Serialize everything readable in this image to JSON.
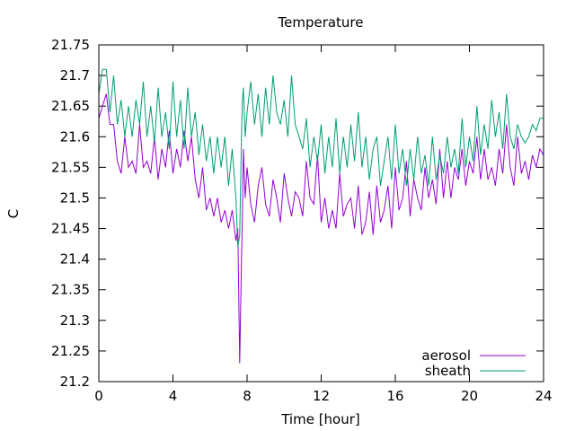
{
  "chart_data": {
    "type": "line",
    "title": "Temperature",
    "xlabel": "Time [hour]",
    "ylabel": "C",
    "xlim": [
      0,
      24
    ],
    "ylim": [
      21.2,
      21.75
    ],
    "xticks": [
      0,
      4,
      8,
      12,
      16,
      20,
      24
    ],
    "yticks": [
      21.2,
      21.25,
      21.3,
      21.35,
      21.4,
      21.45,
      21.5,
      21.55,
      21.6,
      21.65,
      21.7,
      21.75
    ],
    "grid": false,
    "legend_position": "bottom-right",
    "series": [
      {
        "name": "aerosol",
        "color": "#9400d3",
        "x": [
          0,
          0.2,
          0.4,
          0.6,
          0.8,
          1.0,
          1.2,
          1.4,
          1.6,
          1.8,
          2.0,
          2.2,
          2.4,
          2.6,
          2.8,
          3.0,
          3.2,
          3.4,
          3.6,
          3.8,
          4.0,
          4.2,
          4.4,
          4.6,
          4.8,
          5.0,
          5.2,
          5.4,
          5.6,
          5.8,
          6.0,
          6.2,
          6.4,
          6.6,
          6.8,
          7.0,
          7.2,
          7.4,
          7.5,
          7.6,
          7.7,
          7.75,
          7.8,
          7.9,
          8.0,
          8.2,
          8.4,
          8.6,
          8.8,
          9.0,
          9.2,
          9.4,
          9.6,
          9.8,
          10.0,
          10.2,
          10.4,
          10.6,
          10.8,
          11.0,
          11.2,
          11.4,
          11.6,
          11.8,
          12.0,
          12.2,
          12.4,
          12.6,
          12.8,
          13.0,
          13.2,
          13.4,
          13.6,
          13.8,
          14.0,
          14.2,
          14.4,
          14.6,
          14.8,
          15.0,
          15.2,
          15.4,
          15.6,
          15.8,
          16.0,
          16.2,
          16.4,
          16.6,
          16.8,
          17.0,
          17.2,
          17.4,
          17.6,
          17.8,
          18.0,
          18.2,
          18.4,
          18.6,
          18.8,
          19.0,
          19.2,
          19.4,
          19.6,
          19.8,
          20.0,
          20.2,
          20.4,
          20.6,
          20.8,
          21.0,
          21.2,
          21.4,
          21.6,
          21.8,
          22.0,
          22.2,
          22.4,
          22.6,
          22.8,
          23.0,
          23.2,
          23.4,
          23.6,
          23.8,
          24.0
        ],
        "y": [
          21.63,
          21.65,
          21.67,
          21.62,
          21.62,
          21.56,
          21.54,
          21.6,
          21.55,
          21.56,
          21.54,
          21.62,
          21.55,
          21.56,
          21.54,
          21.6,
          21.53,
          21.58,
          21.55,
          21.61,
          21.54,
          21.58,
          21.55,
          21.61,
          21.56,
          21.6,
          21.53,
          21.5,
          21.55,
          21.48,
          21.5,
          21.47,
          21.5,
          21.46,
          21.48,
          21.45,
          21.48,
          21.43,
          21.45,
          21.23,
          21.4,
          21.47,
          21.58,
          21.5,
          21.55,
          21.49,
          21.46,
          21.52,
          21.55,
          21.49,
          21.47,
          21.53,
          21.5,
          21.46,
          21.54,
          21.5,
          21.47,
          21.51,
          21.5,
          21.47,
          21.56,
          21.5,
          21.49,
          21.57,
          21.46,
          21.5,
          21.45,
          21.48,
          21.45,
          21.54,
          21.47,
          21.49,
          21.5,
          21.45,
          21.52,
          21.44,
          21.46,
          21.51,
          21.44,
          21.52,
          21.46,
          21.48,
          21.52,
          21.45,
          21.55,
          21.48,
          21.5,
          21.56,
          21.47,
          21.53,
          21.5,
          21.48,
          21.55,
          21.5,
          21.53,
          21.49,
          21.58,
          21.5,
          21.56,
          21.5,
          21.55,
          21.53,
          21.58,
          21.52,
          21.56,
          21.54,
          21.6,
          21.53,
          21.58,
          21.53,
          21.55,
          21.52,
          21.58,
          21.54,
          21.62,
          21.55,
          21.52,
          21.6,
          21.54,
          21.56,
          21.53,
          21.57,
          21.55,
          21.58,
          21.57
        ]
      },
      {
        "name": "sheath",
        "color": "#009e73",
        "x": [
          0,
          0.2,
          0.4,
          0.6,
          0.8,
          1.0,
          1.2,
          1.4,
          1.6,
          1.8,
          2.0,
          2.2,
          2.4,
          2.6,
          2.8,
          3.0,
          3.2,
          3.4,
          3.6,
          3.8,
          4.0,
          4.2,
          4.4,
          4.6,
          4.8,
          5.0,
          5.2,
          5.4,
          5.6,
          5.8,
          6.0,
          6.2,
          6.4,
          6.6,
          6.8,
          7.0,
          7.2,
          7.4,
          7.5,
          7.6,
          7.7,
          7.75,
          7.8,
          7.9,
          8.0,
          8.2,
          8.4,
          8.6,
          8.8,
          9.0,
          9.2,
          9.4,
          9.6,
          9.8,
          10.0,
          10.2,
          10.4,
          10.6,
          10.8,
          11.0,
          11.2,
          11.4,
          11.6,
          11.8,
          12.0,
          12.2,
          12.4,
          12.6,
          12.8,
          13.0,
          13.2,
          13.4,
          13.6,
          13.8,
          14.0,
          14.2,
          14.4,
          14.6,
          14.8,
          15.0,
          15.2,
          15.4,
          15.6,
          15.8,
          16.0,
          16.2,
          16.4,
          16.6,
          16.8,
          17.0,
          17.2,
          17.4,
          17.6,
          17.8,
          18.0,
          18.2,
          18.4,
          18.6,
          18.8,
          19.0,
          19.2,
          19.4,
          19.6,
          19.8,
          20.0,
          20.2,
          20.4,
          20.6,
          20.8,
          21.0,
          21.2,
          21.4,
          21.6,
          21.8,
          22.0,
          22.2,
          22.4,
          22.6,
          22.8,
          23.0,
          23.2,
          23.4,
          23.6,
          23.8,
          24.0
        ],
        "y": [
          21.67,
          21.71,
          21.71,
          21.64,
          21.7,
          21.62,
          21.66,
          21.6,
          21.65,
          21.6,
          21.66,
          21.62,
          21.69,
          21.6,
          21.65,
          21.59,
          21.68,
          21.6,
          21.64,
          21.58,
          21.69,
          21.6,
          21.66,
          21.58,
          21.68,
          21.6,
          21.64,
          21.57,
          21.62,
          21.56,
          21.6,
          21.54,
          21.6,
          21.55,
          21.6,
          21.52,
          21.58,
          21.5,
          21.42,
          21.44,
          21.6,
          21.66,
          21.68,
          21.6,
          21.64,
          21.69,
          21.62,
          21.67,
          21.6,
          21.68,
          21.62,
          21.7,
          21.64,
          21.62,
          21.66,
          21.6,
          21.7,
          21.62,
          21.6,
          21.58,
          21.63,
          21.55,
          21.6,
          21.56,
          21.62,
          21.54,
          21.6,
          21.55,
          21.63,
          21.54,
          21.6,
          21.55,
          21.62,
          21.56,
          21.64,
          21.55,
          21.6,
          21.53,
          21.58,
          21.6,
          21.52,
          21.56,
          21.6,
          21.53,
          21.62,
          21.54,
          21.58,
          21.52,
          21.58,
          21.53,
          21.6,
          21.54,
          21.57,
          21.52,
          21.6,
          21.53,
          21.57,
          21.54,
          21.6,
          21.55,
          21.58,
          21.54,
          21.63,
          21.55,
          21.6,
          21.56,
          21.65,
          21.57,
          21.62,
          21.58,
          21.66,
          21.6,
          21.64,
          21.58,
          21.67,
          21.6,
          21.58,
          21.62,
          21.6,
          21.59,
          21.6,
          21.62,
          21.61,
          21.63,
          21.63
        ]
      }
    ]
  }
}
